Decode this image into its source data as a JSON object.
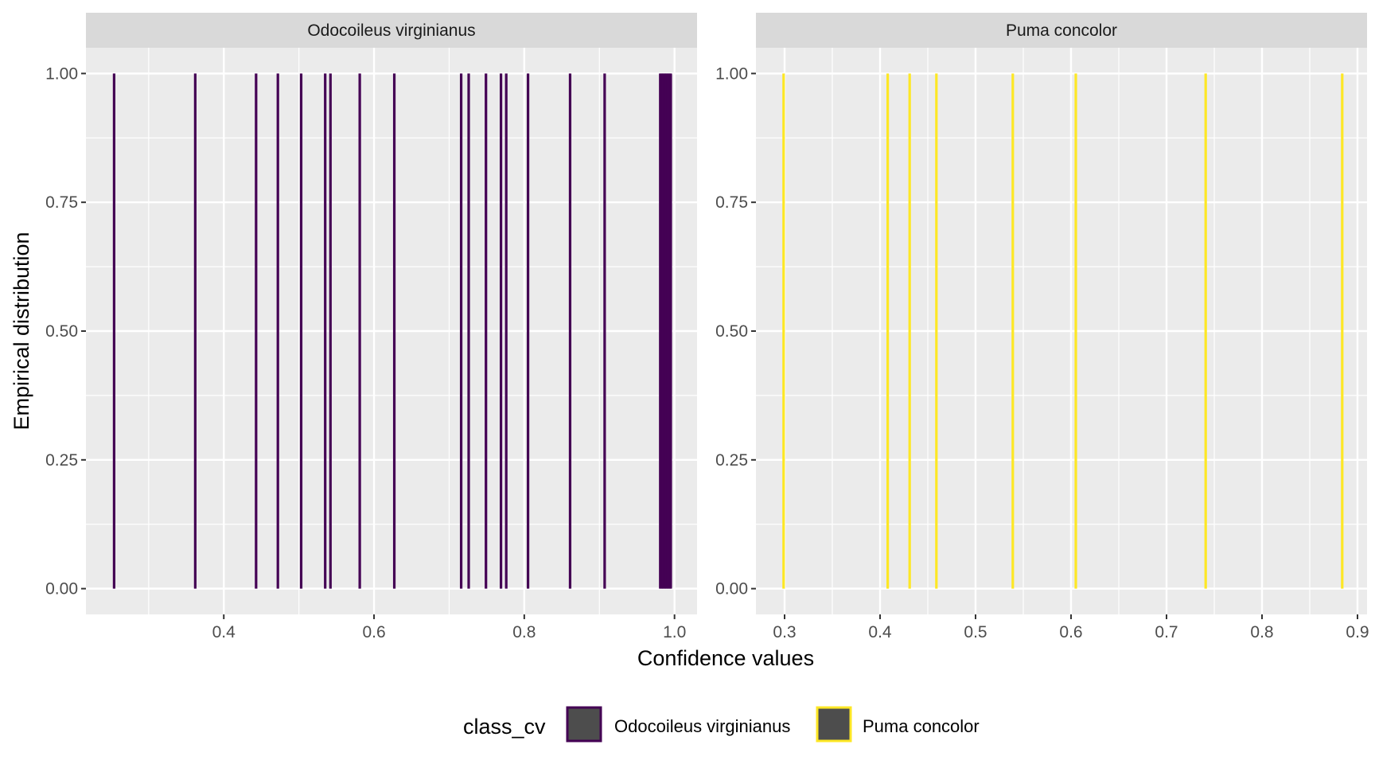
{
  "chart_data": {
    "type": "facet-spike",
    "xlabel": "Confidence values",
    "ylabel": "Empirical distribution",
    "legend": {
      "title": "class_cv",
      "position": "bottom",
      "entries": [
        {
          "label": "Odocoileus virginianus",
          "color": "#440154"
        },
        {
          "label": "Puma concolor",
          "color": "#FDE725"
        }
      ]
    },
    "y_ticks": [
      0.0,
      0.25,
      0.5,
      0.75,
      1.0
    ],
    "y_tick_labels": [
      "0.00",
      "0.25",
      "0.50",
      "0.75",
      "1.00"
    ],
    "ylim": [
      -0.05,
      1.05
    ],
    "grid": true,
    "panels": [
      {
        "title": "Odocoileus virginianus",
        "color": "#440154",
        "xlim": [
          0.2165,
          1.03
        ],
        "x_ticks": [
          0.4,
          0.6,
          0.8,
          1.0
        ],
        "x_tick_labels": [
          "0.4",
          "0.6",
          "0.8",
          "1.0"
        ],
        "x_minor": [
          0.3,
          0.5,
          0.7,
          0.9
        ],
        "x_values": [
          0.254,
          0.362,
          0.443,
          0.472,
          0.503,
          0.535,
          0.542,
          0.581,
          0.627,
          0.716,
          0.726,
          0.749,
          0.769,
          0.776,
          0.805,
          0.861,
          0.907,
          0.981,
          0.983,
          0.985,
          0.987,
          0.989,
          0.991,
          0.993,
          0.995
        ]
      },
      {
        "title": "Puma concolor",
        "color": "#FDE725",
        "xlim": [
          0.27,
          0.91
        ],
        "x_ticks": [
          0.3,
          0.4,
          0.5,
          0.6,
          0.7,
          0.8,
          0.9
        ],
        "x_tick_labels": [
          "0.3",
          "0.4",
          "0.5",
          "0.6",
          "0.7",
          "0.8",
          "0.9"
        ],
        "x_minor": [
          0.35,
          0.45,
          0.55,
          0.65,
          0.75,
          0.85
        ],
        "x_values": [
          0.299,
          0.408,
          0.431,
          0.459,
          0.539,
          0.605,
          0.741,
          0.884
        ]
      }
    ]
  }
}
